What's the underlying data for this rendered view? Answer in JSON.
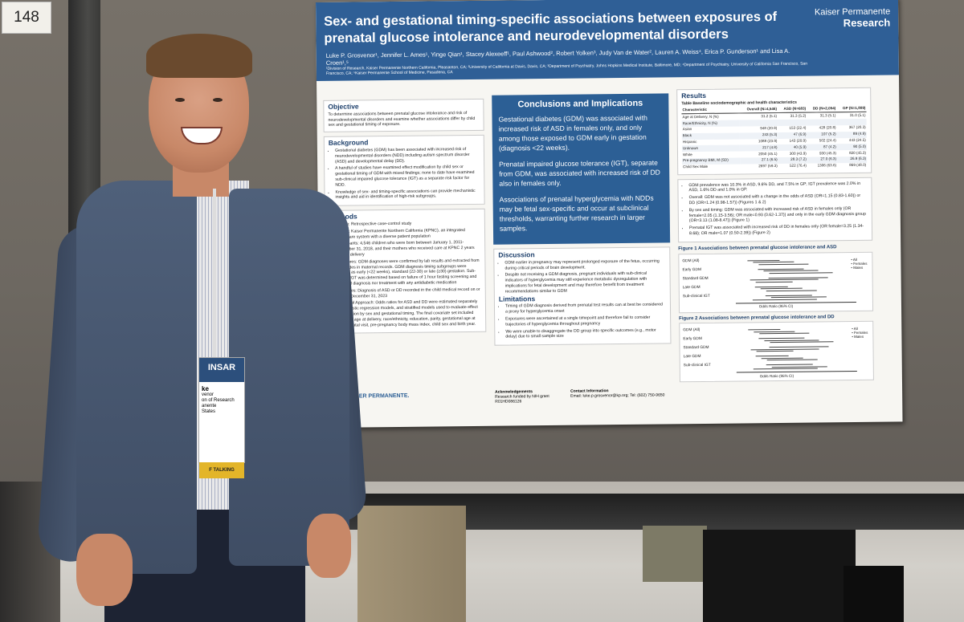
{
  "booth_number": "148",
  "poster": {
    "title": "Sex- and gestational timing-specific associations between exposures of prenatal glucose intolerance and neurodevelopmental disorders",
    "authors": "Luke P. Grosvenor¹, Jennifer L. Ames¹, Yinge Qian¹, Stacey Alexeeff¹, Paul Ashwood², Robert Yolken³, Judy Van de Water², Lauren A. Weiss⁴, Erica P. Gunderson¹ and Lisa A. Croen¹,⁵",
    "affiliations": "¹Division of Research, Kaiser Permanente Northern California, Pleasanton, CA; ²University of California at Davis, Davis, CA; ³Department of Psychiatry, Johns Hopkins Medical Institute, Baltimore, MD; ⁴Department of Psychiatry, University of California San Francisco, San Francisco, CA; ⁵Kaiser Permanente School of Medicine, Pasadena, CA",
    "logo_line1": "Kaiser Permanente",
    "logo_line2": "Research",
    "objective": {
      "heading": "Objective",
      "text": "To determine associations between prenatal glucose intolerance and risk of neurodevelopmental disorders and examine whether associations differ by child sex and gestational timing of exposure."
    },
    "background": {
      "heading": "Background",
      "items": [
        "Gestational diabetes (GDM) has been associated with increased risk of neurodevelopmental disorders (NDD) including autism spectrum disorder (ASD) and developmental delay (DD).",
        "A handful of studies have examined effect modification by child sex or gestational timing of GDM with mixed findings; none to date have examined sub-clinical impaired glucose tolerance (IGT) as a separate risk factor for NDD.",
        "Knowledge of sex- and timing-specific associations can provide mechanistic insights and aid in identification of high-risk subgroups."
      ]
    },
    "methods": {
      "heading": "Methods",
      "items": [
        "Design: Retrospective case-control study",
        "Setting: Kaiser Permanente Northern California (KPNC), an integrated healthcare system with a diverse patient population",
        "Participants: 4,546 children who were born between January 1, 2011-December 31, 2018, and their mothers who received care at KPNC 2 years prior to delivery",
        "Exposures: GDM diagnoses were confirmed by lab results and extracted from ICD codes in maternal records. GDM diagnosis timing subgroups were defined as early (<22 weeks), standard (22-30) or late (≥30) gestation. Sub-clinical IGT was determined based on failure of 1 hour fasting screening and no GDM diagnosis nor treatment with any antidiabetic medication",
        "Outcomes: Diagnosis of ASD or DD recorded in the child medical record on or prior to December 31, 2023",
        "Statistical Approach: Odds ratios for ASD and DD were estimated separately from logistic regression models, and stratified models used to evaluate effect modification by sex and gestational timing. The final covariate set included maternal age at delivery, race/ethnicity, education, parity, gestational age at first prenatal visit, pre-pregnancy body mass index, child sex and birth year."
      ]
    },
    "conclusions": {
      "heading": "Conclusions and Implications",
      "paragraphs": [
        "Gestational diabetes (GDM) was associated with increased risk of ASD in females only, and only among those exposed to GDM early in gestation (diagnosis <22 weeks).",
        "Prenatal impaired glucose tolerance (IGT), separate from GDM, was associated with increased risk of DD also in females only.",
        "Associations of prenatal hyperglycemia with NDDs may be fetal sex-specific and occur at subclinical thresholds, warranting further research in larger samples."
      ]
    },
    "discussion": {
      "heading": "Discussion",
      "items": [
        "GDM earlier in pregnancy may represent prolonged exposure of the fetus, occurring during critical periods of brain development.",
        "Despite not receiving a GDM diagnosis, pregnant individuals with sub-clinical indicators of hyperglycemia may still experience metabolic dysregulation with implications for fetal development and may therefore benefit from treatment recommendations similar to GDM"
      ]
    },
    "limitations": {
      "heading": "Limitations",
      "items": [
        "Timing of GDM diagnosis derived from prenatal test results can at best be considered a proxy for hyperglycemia onset",
        "Exposures were ascertained at a single timepoint and therefore fail to consider trajectories of hyperglycemia throughout pregnancy",
        "We were unable to disaggregate the DD group into specific outcomes (e.g., motor delay) due to small sample size"
      ]
    },
    "acknowledgements": {
      "heading": "Acknowledgements",
      "text": "Research funded by NIH grant R01HD086126"
    },
    "contact": {
      "heading": "Contact Information",
      "text": "Email: luke.p.grosvenor@kp.org; Tel: (602) 750-9650"
    },
    "kp_footer": "KAISER PERMANENTE.",
    "results": {
      "heading": "Results",
      "table_title": "Table  Baseline sociodemographic and health characteristics",
      "columns": [
        "Characteristic",
        "Overall (N=4,546)",
        "ASD (N=683)",
        "DD (N=2,054)",
        "GP (N=1,809)"
      ],
      "rows": [
        [
          "Age at Delivery, N (%)",
          "31.2 (5.1)",
          "31.3 (5.2)",
          "31.3 (5.1)",
          "31.0 (5.1)"
        ],
        [
          "Race/Ethnicity, N (%)",
          "",
          "",
          "",
          ""
        ],
        [
          "Asian",
          "948 (20.9)",
          "153 (22.4)",
          "428 (20.8)",
          "367 (20.3)"
        ],
        [
          "Black",
          "243 (5.3)",
          "47 (6.9)",
          "107 (5.2)",
          "89 (4.9)"
        ],
        [
          "Hispanic",
          "1088 (23.9)",
          "143 (20.9)",
          "502 (24.4)",
          "443 (24.5)"
        ],
        [
          "Unknown",
          "217 (4.8)",
          "40 (5.9)",
          "87 (4.2)",
          "90 (5.0)"
        ],
        [
          "White",
          "2050 (45.1)",
          "300 (43.9)",
          "930 (45.3)",
          "820 (45.3)"
        ],
        [
          "Pre-pregnancy BMI, M (SD)",
          "27.1 (6.5)",
          "28.3 (7.2)",
          "27.0 (6.3)",
          "26.9 (6.3)"
        ],
        [
          "Child Sex Male",
          "2697 (59.3)",
          "522 (76.4)",
          "1306 (63.6)",
          "869 (48.0)"
        ]
      ],
      "bullets": [
        "GDM prevalence was 10.3% in ASD, 9.6% DD, and 7.5% in GP; IGT prevalence was 2.0% in ASD, 1.6% DD and 1.0% in GP.",
        "Overall: GDM was not associated with a change in the odds of ASD (OR=1.15 (0.83-1.60)) or DD (OR=1.24 (0.98-1.57)) (Figures 1 & 2)",
        "By sex and timing: GDM was associated with increased risk of ASD in females only (OR female=2.05 (1.15-3.56); OR male=0.93 (0.62-1.37)) and only in the early GDM diagnosis group (OR=3.13 (1.08-8.47)) (Figure 1)",
        "Prenatal IGT was associated with increased risk of DD in females only (OR female=3.25 (1.34-8.68); OR male=1.07 (0.50-2.39)) (Figure 2)"
      ],
      "fig1_title": "Figure 1  Associations between prenatal glucose intolerance and ASD",
      "fig2_title": "Figure 2  Associations between prenatal glucose intolerance and DD",
      "fig_rows": [
        "GDM (All)",
        "Early GDM",
        "Standard GDM",
        "Late GDM",
        "Sub-clinical IGT"
      ],
      "fig_legend": [
        "All",
        "Females",
        "Males"
      ],
      "fig_xlabel": "Odds Ratio (95% CI)"
    }
  },
  "badge": {
    "org_logo": "INSAR",
    "name": "ke",
    "org_lines": [
      "venor",
      "on of Research",
      "anente",
      "States"
    ],
    "ribbon": "F TALKING"
  }
}
